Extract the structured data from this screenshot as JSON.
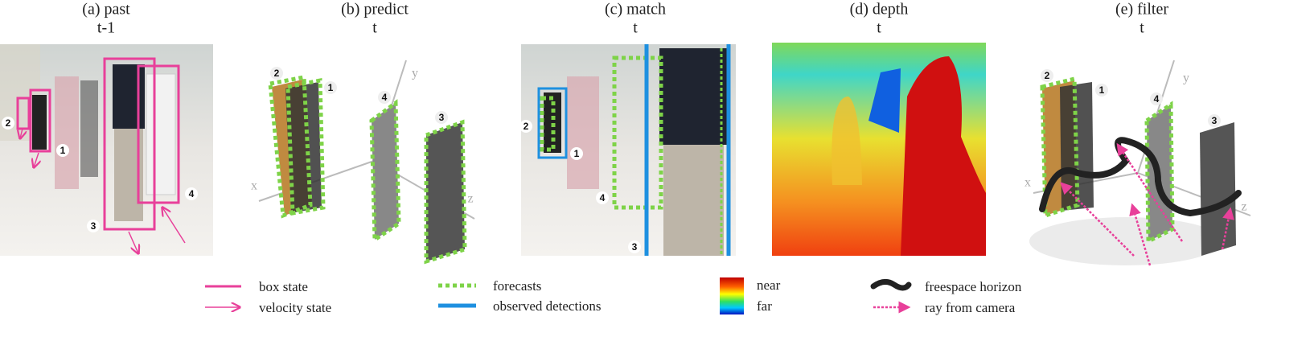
{
  "panels": [
    {
      "title": "(a) past",
      "time": "t-1",
      "labels": [
        "2",
        "1",
        "3",
        "4"
      ]
    },
    {
      "title": "(b) predict",
      "time": "t",
      "labels": [
        "2",
        "1",
        "4",
        "3"
      ],
      "axes": [
        "x",
        "y",
        "z"
      ]
    },
    {
      "title": "(c) match",
      "time": "t",
      "labels": [
        "2",
        "1",
        "4",
        "3"
      ]
    },
    {
      "title": "(d) depth",
      "time": "t"
    },
    {
      "title": "(e) filter",
      "time": "t",
      "labels": [
        "2",
        "1",
        "4",
        "3"
      ],
      "axes": [
        "x",
        "y",
        "z"
      ]
    }
  ],
  "legend": [
    "box state",
    "velocity state",
    "forecasts",
    "observed detections",
    "near",
    "far",
    "freespace horizon",
    "ray from camera"
  ]
}
